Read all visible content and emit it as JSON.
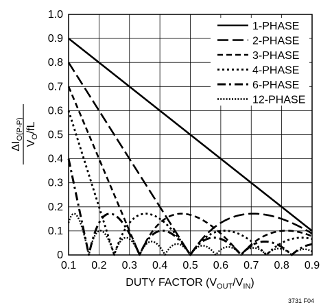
{
  "chart_data": {
    "type": "line",
    "xlabel": "DUTY FACTOR (V",
    "xlabel_sub1": "OUT",
    "xlabel_mid": "/V",
    "xlabel_sub2": "IN",
    "xlabel_end": ")",
    "ylabel_num": "ΔI",
    "ylabel_num_sub": "O(P-P)",
    "ylabel_den": "V",
    "ylabel_den_sub": "O",
    "ylabel_den_end": "/fL",
    "xlim": [
      0.1,
      0.9
    ],
    "ylim": [
      0,
      1.0
    ],
    "x_ticks": [
      "0.1",
      "0.2",
      "0.3",
      "0.4",
      "0.5",
      "0.6",
      "0.7",
      "0.8",
      "0.9"
    ],
    "y_ticks": [
      "0",
      "0.1",
      "0.2",
      "0.3",
      "0.4",
      "0.5",
      "0.6",
      "0.7",
      "0.8",
      "0.9",
      "1.0"
    ],
    "grid": true,
    "legend_position": "top-right",
    "footnote": "3731 F04",
    "series": [
      {
        "name": "1-PHASE",
        "phases": 1,
        "dash": "solid"
      },
      {
        "name": "2-PHASE",
        "phases": 2,
        "dash": "long-dash"
      },
      {
        "name": "3-PHASE",
        "phases": 3,
        "dash": "dash"
      },
      {
        "name": "4-PHASE",
        "phases": 4,
        "dash": "dot"
      },
      {
        "name": "6-PHASE",
        "phases": 6,
        "dash": "dash-dot"
      },
      {
        "name": "12-PHASE",
        "phases": 12,
        "dash": "fine-dot"
      }
    ]
  }
}
